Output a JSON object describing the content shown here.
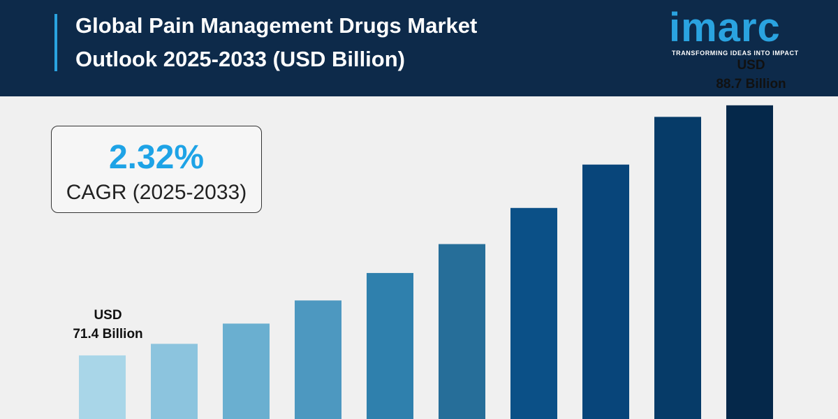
{
  "header": {
    "title_line1": "Global Pain Management Drugs Market",
    "title_line2": "Outlook 2025-2033 (USD Billion)"
  },
  "logo": {
    "word": "imarc",
    "tagline": "TRANSFORMING IDEAS INTO IMPACT"
  },
  "cagr": {
    "value": "2.32%",
    "label": "CAGR (2025-2033)"
  },
  "chart_data": {
    "type": "bar",
    "categories": [
      "",
      "",
      "",
      "",
      "",
      "",
      "",
      "",
      "",
      ""
    ],
    "values": [
      71.4,
      72.2,
      73.6,
      75.2,
      77.1,
      79.1,
      81.6,
      84.6,
      87.9,
      88.7
    ],
    "colors": [
      "#a9d6e8",
      "#8cc4de",
      "#6aafd0",
      "#4d98c0",
      "#2f80ad",
      "#266e99",
      "#0b5087",
      "#08457a",
      "#063b68",
      "#05284a"
    ],
    "annotations": [
      {
        "index": 0,
        "line1": "USD",
        "line2": "71.4 Billion"
      },
      {
        "index": 9,
        "line1": "USD",
        "line2": "88.7 Billion"
      }
    ]
  }
}
